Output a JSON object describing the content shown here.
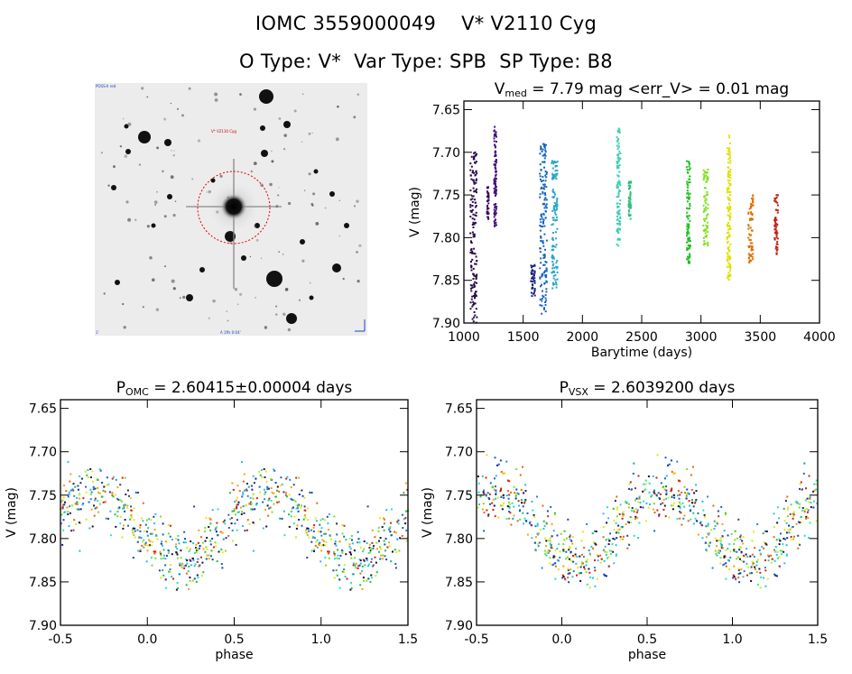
{
  "header": {
    "line1_id": "IOMC 3559000049",
    "line1_name": "V* V2110 Cyg",
    "line2_otype": "O Type: V*",
    "line2_vartype": "Var Type: SPB",
    "line2_sptype": "SP Type: B8"
  },
  "finder": {
    "label_top_left": "POSS-II red",
    "label_star": "V* V2110 Cyg",
    "label_bottom_left": "1'",
    "label_bottom_center": "A 1ffs 0:04'",
    "circle_color": "#e00000"
  },
  "chart_data": [
    {
      "id": "lightcurve",
      "type": "scatter",
      "title_main": "V",
      "title_sub": "med",
      "title_rest": " = 7.79 mag <err_V> = 0.01 mag",
      "xlabel": "Barytime (days)",
      "ylabel": "V (mag)",
      "xlim": [
        1000,
        4000
      ],
      "ylim": [
        7.9,
        7.64
      ],
      "y_inverted": true,
      "xticks": [
        1000,
        1500,
        2000,
        2500,
        3000,
        3500,
        4000
      ],
      "yticks": [
        7.65,
        7.7,
        7.75,
        7.8,
        7.85,
        7.9
      ],
      "groups": [
        {
          "t": [
            1055,
            1110
          ],
          "v": [
            7.7,
            7.9
          ],
          "color": "#2a0a4a"
        },
        {
          "t": [
            1195,
            1210
          ],
          "v": [
            7.74,
            7.78
          ],
          "color": "#3a0a60"
        },
        {
          "t": [
            1255,
            1275
          ],
          "v": [
            7.67,
            7.79
          ],
          "color": "#40107a"
        },
        {
          "t": [
            1565,
            1600
          ],
          "v": [
            7.83,
            7.87
          ],
          "color": "#1a237e"
        },
        {
          "t": [
            1640,
            1700
          ],
          "v": [
            7.69,
            7.89
          ],
          "color": "#1565c0"
        },
        {
          "t": [
            1740,
            1790
          ],
          "v": [
            7.71,
            7.86
          ],
          "color": "#29a6c9"
        },
        {
          "t": [
            2290,
            2320
          ],
          "v": [
            7.67,
            7.81
          ],
          "color": "#40d0b0"
        },
        {
          "t": [
            2390,
            2410
          ],
          "v": [
            7.73,
            7.78
          ],
          "color": "#30c080"
        },
        {
          "t": [
            2880,
            2910
          ],
          "v": [
            7.71,
            7.83
          ],
          "color": "#20c020"
        },
        {
          "t": [
            3020,
            3060
          ],
          "v": [
            7.72,
            7.81
          ],
          "color": "#80e020"
        },
        {
          "t": [
            3220,
            3250
          ],
          "v": [
            7.68,
            7.85
          ],
          "color": "#e0e000"
        },
        {
          "t": [
            3400,
            3440
          ],
          "v": [
            7.75,
            7.83
          ],
          "color": "#e07000"
        },
        {
          "t": [
            3620,
            3650
          ],
          "v": [
            7.75,
            7.82
          ],
          "color": "#c02010"
        }
      ]
    },
    {
      "id": "phase_omc",
      "type": "scatter",
      "title_main": "P",
      "title_sub": "OMC",
      "title_rest": " = 2.60415±0.00004 days",
      "xlabel": "phase",
      "ylabel": "V (mag)",
      "xlim": [
        -0.5,
        1.5
      ],
      "ylim": [
        7.9,
        7.64
      ],
      "y_inverted": true,
      "xticks": [
        -0.5,
        0.0,
        0.5,
        1.0,
        1.5
      ],
      "yticks": [
        7.65,
        7.7,
        7.75,
        7.8,
        7.85,
        7.9
      ],
      "curve": {
        "mean": 7.785,
        "amplitude": 0.04,
        "phase_max": 0.2,
        "scatter": 0.03
      }
    },
    {
      "id": "phase_vsx",
      "type": "scatter",
      "title_main": "P",
      "title_sub": "VSX",
      "title_rest": " = 2.6039200 days",
      "xlabel": "phase",
      "ylabel": "V (mag)",
      "xlim": [
        -0.5,
        1.5
      ],
      "ylim": [
        7.9,
        7.64
      ],
      "y_inverted": true,
      "xticks": [
        -0.5,
        0.0,
        0.5,
        1.0,
        1.5
      ],
      "yticks": [
        7.65,
        7.7,
        7.75,
        7.8,
        7.85,
        7.9
      ],
      "curve": {
        "mean": 7.785,
        "amplitude": 0.04,
        "phase_max": 0.1,
        "scatter": 0.03
      }
    }
  ]
}
